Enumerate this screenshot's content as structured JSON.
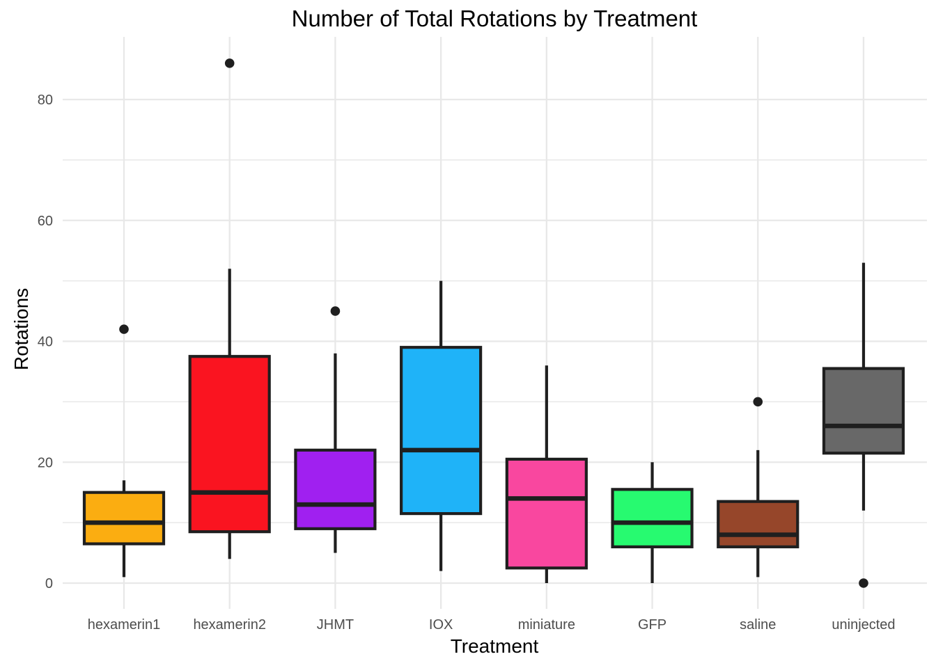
{
  "figure": {
    "background_color": "#FFFFFF",
    "legend": "none"
  },
  "chart_data": {
    "type": "boxplot",
    "title": "Number of Total Rotations by Treatment",
    "xlabel": "Treatment",
    "ylabel": "Rotations",
    "ylim": [
      -4,
      90
    ],
    "yticks": [
      0,
      20,
      40,
      60,
      80
    ],
    "minor_gridlines": [
      10,
      30,
      50,
      70
    ],
    "grid": "horizontal major+minor and vertical per-category gridlines, light gray, no axis lines, white background",
    "legend_position": "none",
    "categories": [
      "hexamerin1",
      "hexamerin2",
      "JHMT",
      "IOX",
      "miniature",
      "GFP",
      "saline",
      "uninjected"
    ],
    "series": [
      {
        "name": "hexamerin1",
        "color": "#FBAD11",
        "whisker_low": 1,
        "q1": 6.5,
        "median": 10,
        "q3": 15,
        "whisker_high": 17,
        "outliers": [
          42
        ]
      },
      {
        "name": "hexamerin2",
        "color": "#FA1420",
        "whisker_low": 4,
        "q1": 8.5,
        "median": 15,
        "q3": 37.5,
        "whisker_high": 52,
        "outliers": [
          86
        ]
      },
      {
        "name": "JHMT",
        "color": "#A020F0",
        "whisker_low": 5,
        "q1": 9,
        "median": 13,
        "q3": 22,
        "whisker_high": 38,
        "outliers": [
          45
        ]
      },
      {
        "name": "IOX",
        "color": "#1FB3F8",
        "whisker_low": 2,
        "q1": 11.5,
        "median": 22,
        "q3": 39,
        "whisker_high": 50,
        "outliers": []
      },
      {
        "name": "miniature",
        "color": "#F9479F",
        "whisker_low": 0,
        "q1": 2.5,
        "median": 14,
        "q3": 20.5,
        "whisker_high": 36,
        "outliers": []
      },
      {
        "name": "GFP",
        "color": "#27FA70",
        "whisker_low": 0,
        "q1": 6,
        "median": 10,
        "q3": 15.5,
        "whisker_high": 20,
        "outliers": []
      },
      {
        "name": "saline",
        "color": "#96462A",
        "whisker_low": 1,
        "q1": 6,
        "median": 8,
        "q3": 13.5,
        "whisker_high": 22,
        "outliers": [
          30
        ]
      },
      {
        "name": "uninjected",
        "color": "#686868",
        "whisker_low": 12,
        "q1": 21.5,
        "median": 26,
        "q3": 35.5,
        "whisker_high": 53,
        "outliers": [
          0
        ]
      }
    ]
  },
  "style": {
    "box_border_color": "#1F1F1F",
    "median_color": "#1F1F1F",
    "outlier_color": "#1F1F1F",
    "gridline_color": "#E8E8E8",
    "tick_label_color": "#4D4D4D",
    "title_color": "#000000"
  }
}
